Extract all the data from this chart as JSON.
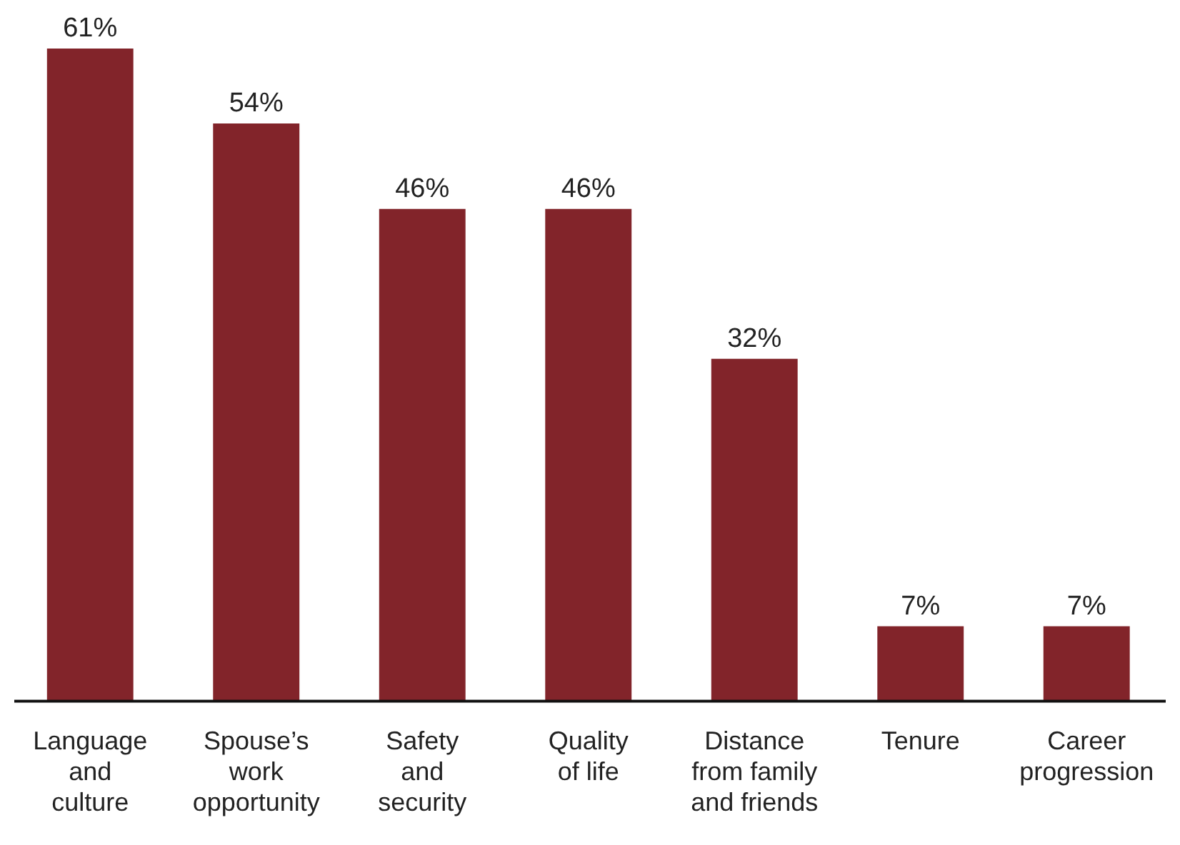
{
  "chart_data": {
    "type": "bar",
    "categories": [
      "Language\nand\nculture",
      "Spouse’s\nwork\nopportunity",
      "Safety\nand\nsecurity",
      "Quality\nof life",
      "Distance\nfrom family\nand friends",
      "Tenure",
      "Career\nprogression"
    ],
    "values": [
      61,
      54,
      46,
      46,
      32,
      7,
      7
    ],
    "value_labels": [
      "61%",
      "54%",
      "46%",
      "46%",
      "32%",
      "7%",
      "7%"
    ],
    "color": "#82242a",
    "grid": false,
    "legend": false
  }
}
